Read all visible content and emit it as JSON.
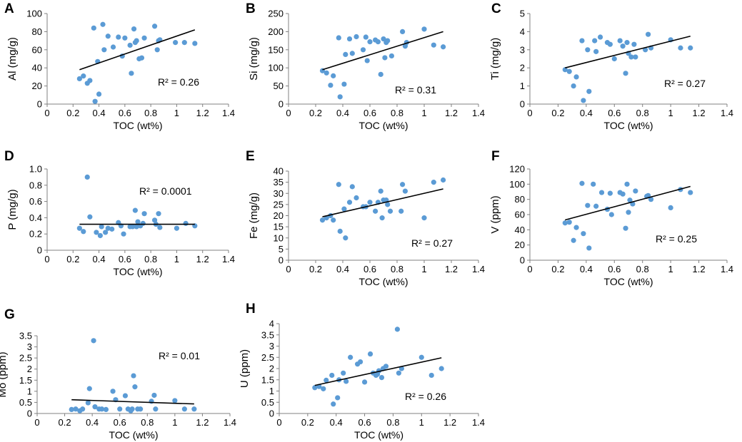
{
  "colors": {
    "point": "#5b9bd5",
    "trend": "#000000",
    "axis": "#808080",
    "text": "#000000"
  },
  "chart_data": [
    {
      "panel": "A",
      "type": "scatter",
      "xlabel": "TOC (wt%)",
      "ylabel": "Al (mg/g)",
      "xlim": [
        0,
        1.4
      ],
      "ylim": [
        0,
        100
      ],
      "xticks": [
        "0",
        "0.2",
        "0.4",
        "0.6",
        "0.8",
        "1",
        "1.2",
        "1.4"
      ],
      "yticks": [
        "0",
        "20",
        "40",
        "60",
        "80",
        "100"
      ],
      "r2_label": "R² = 0.26",
      "trend": [
        [
          0.25,
          38
        ],
        [
          1.14,
          82
        ]
      ],
      "x": [
        0.25,
        0.28,
        0.31,
        0.33,
        0.36,
        0.37,
        0.39,
        0.4,
        0.43,
        0.44,
        0.47,
        0.51,
        0.55,
        0.58,
        0.6,
        0.64,
        0.65,
        0.67,
        0.68,
        0.69,
        0.71,
        0.73,
        0.75,
        0.83,
        0.85,
        0.86,
        0.87,
        0.99,
        1.06,
        1.14
      ],
      "y": [
        28,
        31,
        23,
        26,
        84,
        3,
        47,
        11,
        88,
        60,
        75,
        63,
        74,
        53,
        73,
        65,
        34,
        83,
        68,
        70,
        50,
        51,
        73,
        86,
        60,
        70,
        71,
        68,
        68,
        67
      ]
    },
    {
      "panel": "B",
      "type": "scatter",
      "xlabel": "TOC (wt%)",
      "ylabel": "Si (mg/g)",
      "xlim": [
        0,
        1.4
      ],
      "ylim": [
        0,
        250
      ],
      "xticks": [
        "0",
        "0.2",
        "0.4",
        "0.6",
        "0.8",
        "1",
        "1.2",
        "1.4"
      ],
      "yticks": [
        "0",
        "50",
        "100",
        "150",
        "200",
        "250"
      ],
      "r2_label": "R² = 0.31",
      "trend": [
        [
          0.25,
          95
        ],
        [
          1.14,
          200
        ]
      ],
      "x": [
        0.25,
        0.28,
        0.31,
        0.33,
        0.37,
        0.38,
        0.41,
        0.42,
        0.45,
        0.47,
        0.5,
        0.55,
        0.57,
        0.58,
        0.6,
        0.64,
        0.66,
        0.68,
        0.7,
        0.71,
        0.72,
        0.73,
        0.76,
        0.84,
        0.86,
        0.87,
        1.0,
        1.07,
        1.14
      ],
      "y": [
        92,
        86,
        52,
        78,
        183,
        20,
        55,
        137,
        180,
        140,
        186,
        150,
        185,
        120,
        172,
        177,
        172,
        82,
        180,
        128,
        170,
        175,
        133,
        200,
        160,
        170,
        207,
        163,
        158
      ]
    },
    {
      "panel": "C",
      "type": "scatter",
      "xlabel": "TOC (wt%)",
      "ylabel": "Ti (mg/g)",
      "xlim": [
        0,
        1.4
      ],
      "ylim": [
        0,
        5
      ],
      "xticks": [
        "0",
        "0.2",
        "0.4",
        "0.6",
        "0.8",
        "1",
        "1.2",
        "1.4"
      ],
      "yticks": [
        "0",
        "1",
        "2",
        "3",
        "4",
        "5"
      ],
      "r2_label": "R² = 0.27",
      "trend": [
        [
          0.25,
          2.0
        ],
        [
          1.14,
          3.75
        ]
      ],
      "x": [
        0.25,
        0.28,
        0.31,
        0.33,
        0.37,
        0.38,
        0.41,
        0.42,
        0.46,
        0.47,
        0.5,
        0.55,
        0.57,
        0.6,
        0.64,
        0.66,
        0.68,
        0.69,
        0.7,
        0.72,
        0.74,
        0.75,
        0.82,
        0.84,
        0.86,
        1.0,
        1.07,
        1.14
      ],
      "y": [
        1.9,
        1.8,
        1.0,
        1.5,
        3.5,
        0.2,
        3.0,
        0.7,
        3.5,
        2.9,
        3.7,
        3.4,
        3.3,
        2.5,
        3.5,
        3.2,
        1.7,
        3.4,
        2.8,
        2.6,
        3.3,
        2.6,
        3.0,
        3.85,
        3.1,
        3.55,
        3.1,
        3.1
      ]
    },
    {
      "panel": "D",
      "type": "scatter",
      "xlabel": "TOC (wt%)",
      "ylabel": "P (mg/g)",
      "xlim": [
        0,
        1.4
      ],
      "ylim": [
        0,
        1.0
      ],
      "xticks": [
        "0",
        "0.2",
        "0.4",
        "0.6",
        "0.8",
        "1",
        "1.2",
        "1.4"
      ],
      "yticks": [
        "0",
        "0.2",
        "0.4",
        "0.6",
        "0.8",
        "1.0"
      ],
      "r2_label": "R² = 0.0001",
      "trend": [
        [
          0.25,
          0.32
        ],
        [
          1.14,
          0.32
        ]
      ],
      "x": [
        0.25,
        0.28,
        0.31,
        0.33,
        0.38,
        0.41,
        0.42,
        0.45,
        0.47,
        0.5,
        0.55,
        0.57,
        0.59,
        0.64,
        0.66,
        0.68,
        0.69,
        0.7,
        0.72,
        0.74,
        0.75,
        0.83,
        0.84,
        0.86,
        0.87,
        1.0,
        1.07,
        1.14
      ],
      "y": [
        0.27,
        0.23,
        0.9,
        0.41,
        0.22,
        0.18,
        0.29,
        0.22,
        0.27,
        0.26,
        0.34,
        0.3,
        0.2,
        0.29,
        0.29,
        0.49,
        0.29,
        0.35,
        0.3,
        0.33,
        0.45,
        0.37,
        0.32,
        0.45,
        0.28,
        0.27,
        0.33,
        0.3
      ]
    },
    {
      "panel": "E",
      "type": "scatter",
      "xlabel": "TOC (wt%)",
      "ylabel": "Fe (mg/g)",
      "xlim": [
        0,
        1.4
      ],
      "ylim": [
        0,
        40
      ],
      "xticks": [
        "0",
        "0.2",
        "0.4",
        "0.6",
        "0.8",
        "1",
        "1.2",
        "1.4"
      ],
      "yticks": [
        "0",
        "5",
        "10",
        "15",
        "20",
        "25",
        "30",
        "35",
        "40"
      ],
      "r2_label": "R² = 0.27",
      "trend": [
        [
          0.25,
          19.5
        ],
        [
          1.14,
          32
        ]
      ],
      "x": [
        0.25,
        0.28,
        0.31,
        0.33,
        0.37,
        0.38,
        0.41,
        0.42,
        0.45,
        0.47,
        0.5,
        0.55,
        0.57,
        0.6,
        0.64,
        0.66,
        0.68,
        0.69,
        0.7,
        0.72,
        0.73,
        0.75,
        0.83,
        0.84,
        0.86,
        1.0,
        1.07,
        1.14
      ],
      "y": [
        18,
        19,
        20,
        18,
        34,
        13,
        23,
        10,
        26,
        33,
        28,
        24,
        24,
        26,
        22,
        26,
        31,
        19,
        27,
        27,
        25,
        22,
        22,
        34,
        31,
        19,
        35,
        36
      ]
    },
    {
      "panel": "F",
      "type": "scatter",
      "xlabel": "TOC (wt%)",
      "ylabel": "V (ppm)",
      "xlim": [
        0,
        1.4
      ],
      "ylim": [
        0,
        120
      ],
      "xticks": [
        "0",
        "0.2",
        "0.4",
        "0.6",
        "0.8",
        "1",
        "1.2",
        "1.4"
      ],
      "yticks": [
        "0",
        "20",
        "40",
        "60",
        "80",
        "100",
        "120"
      ],
      "r2_label": "R² = 0.25",
      "trend": [
        [
          0.25,
          53
        ],
        [
          1.14,
          97
        ]
      ],
      "x": [
        0.25,
        0.28,
        0.31,
        0.33,
        0.37,
        0.38,
        0.41,
        0.42,
        0.45,
        0.47,
        0.51,
        0.55,
        0.57,
        0.58,
        0.64,
        0.66,
        0.68,
        0.69,
        0.7,
        0.71,
        0.73,
        0.75,
        0.83,
        0.84,
        0.86,
        1.0,
        1.07,
        1.14
      ],
      "y": [
        49,
        50,
        26,
        43,
        101,
        35,
        72,
        16,
        100,
        71,
        89,
        67,
        88,
        60,
        89,
        87,
        42,
        100,
        63,
        79,
        74,
        91,
        84,
        85,
        80,
        69,
        93,
        89
      ]
    },
    {
      "panel": "G",
      "type": "scatter",
      "xlabel": "TOC (wt%)",
      "ylabel": "Mo (ppm)",
      "xlim": [
        0,
        1.4
      ],
      "ylim": [
        0,
        3.5
      ],
      "xticks": [
        "0",
        "0.2",
        "0.4",
        "0.6",
        "0.8",
        "1",
        "1.2",
        "1.4"
      ],
      "yticks": [
        "0",
        "0.5",
        "1",
        "1.5",
        "2",
        "2.5",
        "3",
        "3.5"
      ],
      "r2_label": "R² = 0.01",
      "trend": [
        [
          0.25,
          0.62
        ],
        [
          1.14,
          0.43
        ]
      ],
      "x": [
        0.25,
        0.28,
        0.31,
        0.33,
        0.37,
        0.38,
        0.41,
        0.42,
        0.45,
        0.47,
        0.5,
        0.55,
        0.57,
        0.6,
        0.64,
        0.66,
        0.68,
        0.69,
        0.7,
        0.71,
        0.73,
        0.75,
        0.83,
        0.85,
        0.86,
        1.0,
        1.07,
        1.14
      ],
      "y": [
        0.18,
        0.2,
        0.12,
        0.2,
        0.48,
        1.12,
        3.28,
        0.3,
        0.2,
        0.2,
        0.18,
        1.0,
        0.62,
        0.2,
        0.8,
        0.2,
        0.12,
        0.2,
        1.7,
        1.2,
        0.2,
        0.2,
        0.55,
        0.82,
        0.2,
        0.58,
        0.2,
        0.2
      ]
    },
    {
      "panel": "H",
      "type": "scatter",
      "xlabel": "TOC (wt%)",
      "ylabel": "U (ppm)",
      "xlim": [
        0,
        1.4
      ],
      "ylim": [
        0,
        4
      ],
      "xticks": [
        "0",
        "0.2",
        "0.4",
        "0.6",
        "0.8",
        "1",
        "1.2",
        "1.4"
      ],
      "yticks": [
        "0",
        "0.5",
        "1",
        "1.5",
        "2",
        "2.5",
        "3",
        "3.5",
        "4"
      ],
      "r2_label": "R² = 0.26",
      "trend": [
        [
          0.25,
          1.25
        ],
        [
          1.14,
          2.48
        ]
      ],
      "x": [
        0.25,
        0.28,
        0.31,
        0.33,
        0.37,
        0.38,
        0.41,
        0.42,
        0.45,
        0.47,
        0.5,
        0.55,
        0.57,
        0.6,
        0.64,
        0.66,
        0.68,
        0.69,
        0.7,
        0.72,
        0.73,
        0.75,
        0.83,
        0.84,
        0.86,
        1.0,
        1.07,
        1.14
      ],
      "y": [
        1.15,
        1.2,
        1.1,
        1.48,
        1.7,
        0.42,
        0.7,
        1.5,
        1.8,
        1.43,
        2.5,
        2.2,
        2.3,
        1.4,
        2.65,
        1.8,
        1.7,
        1.75,
        1.9,
        1.6,
        2.0,
        2.1,
        3.75,
        1.8,
        2.0,
        2.5,
        1.7,
        2.0
      ]
    }
  ]
}
